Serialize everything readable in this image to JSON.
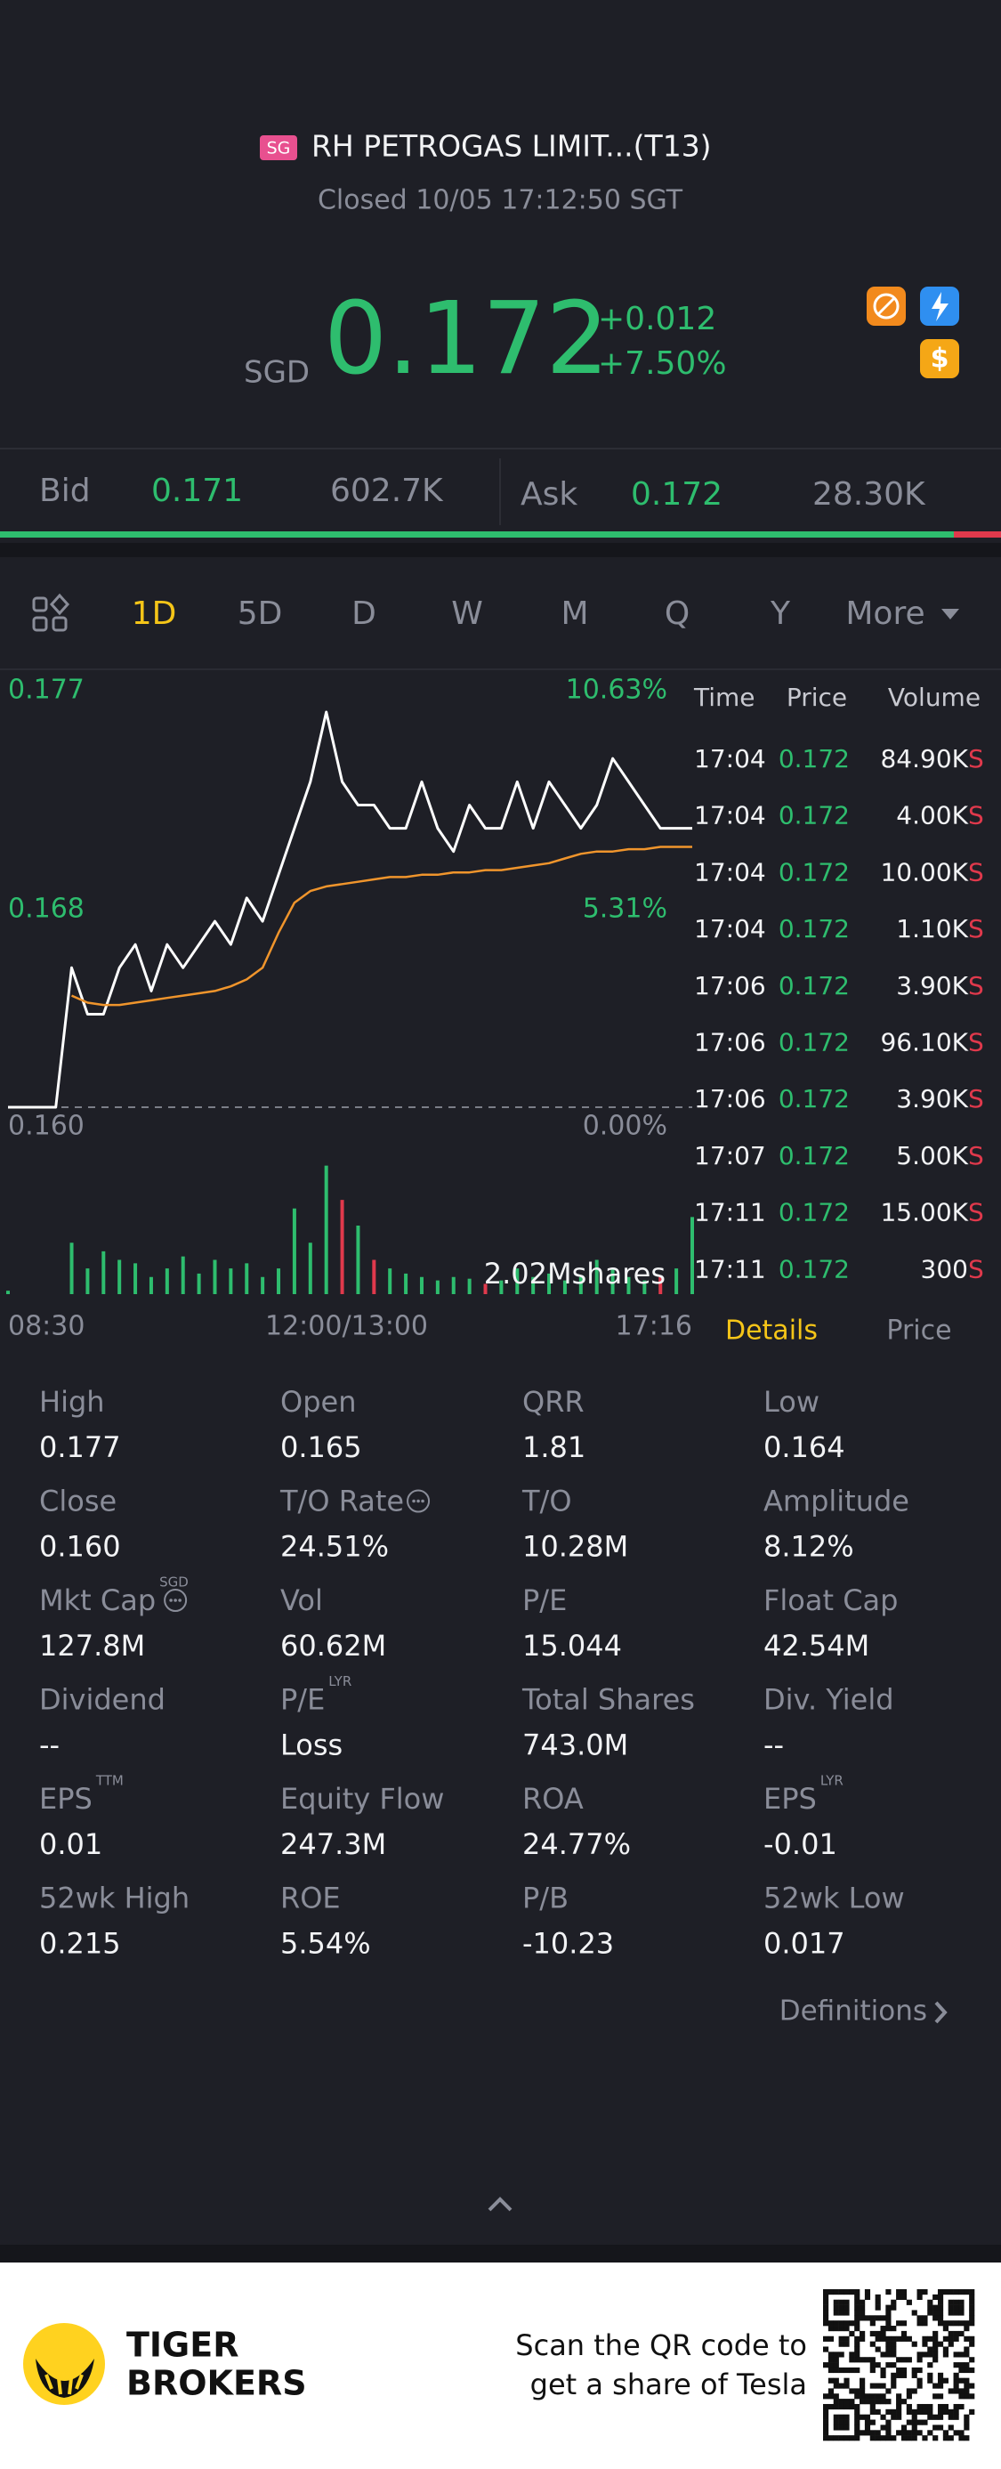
{
  "header": {
    "badge": "SG",
    "name": "RH PETROGAS LIMIT...(T13)",
    "status": "Closed 10/05 17:12:50 SGT",
    "currency": "SGD",
    "price": "0.172",
    "change": "+0.012",
    "change_pct": "+7.50%"
  },
  "quote": {
    "bid_label": "Bid",
    "bid": "0.171",
    "bid_size": "602.7K",
    "ask_label": "Ask",
    "ask": "0.172",
    "ask_size": "28.30K"
  },
  "tabs": [
    "1D",
    "5D",
    "D",
    "W",
    "M",
    "Q",
    "Y",
    "More"
  ],
  "chart_data": {
    "type": "line",
    "ylim": [
      0.16,
      0.177
    ],
    "yticks": [
      0.177,
      {
        "value": 0.1685,
        "label": "0.168"
      },
      {
        "value": 0.16,
        "label": "0.160"
      }
    ],
    "y2ticks": [
      {
        "value": 0.177,
        "label": "10.63%"
      },
      {
        "value": 0.1685,
        "label": "5.31%"
      },
      {
        "value": 0.16,
        "label": "0.00%"
      }
    ],
    "x_labels": [
      "08:30",
      "12:00/13:00",
      "17:16"
    ],
    "grid": false,
    "series": [
      {
        "color": "#ffffff",
        "values": [
          0.16,
          0.16,
          0.16,
          0.16,
          0.166,
          0.164,
          0.164,
          0.166,
          0.167,
          0.165,
          0.167,
          0.166,
          0.167,
          0.168,
          0.167,
          0.169,
          0.168,
          0.17,
          0.172,
          0.174,
          0.177,
          0.174,
          0.173,
          0.173,
          0.172,
          0.172,
          0.174,
          0.172,
          0.171,
          0.173,
          0.172,
          0.172,
          0.174,
          0.172,
          0.174,
          0.173,
          0.172,
          0.173,
          0.175,
          0.174,
          0.173,
          0.172,
          0.172,
          0.172
        ]
      },
      {
        "color": "#f0952c",
        "values": [
          null,
          null,
          null,
          null,
          0.1648,
          0.1645,
          0.1644,
          0.1644,
          0.1645,
          0.1646,
          0.1647,
          0.1648,
          0.1649,
          0.165,
          0.1652,
          0.1655,
          0.166,
          0.1675,
          0.1688,
          0.1693,
          0.1695,
          0.1696,
          0.1697,
          0.1698,
          0.1699,
          0.1699,
          0.17,
          0.17,
          0.1701,
          0.1701,
          0.1702,
          0.1702,
          0.1703,
          0.1704,
          0.1705,
          0.1707,
          0.1709,
          0.171,
          0.171,
          0.1711,
          0.1711,
          0.1712,
          0.1712,
          0.1712
        ]
      }
    ],
    "volume": {
      "label": "2.02Mshares",
      "ylim": [
        0,
        800000
      ],
      "up_color": "#2ebd6e",
      "down_color": "#e0394c",
      "values": [
        20000,
        0,
        0,
        0,
        300000,
        150000,
        250000,
        200000,
        180000,
        100000,
        150000,
        220000,
        120000,
        200000,
        150000,
        180000,
        100000,
        150000,
        500000,
        300000,
        750000,
        550000,
        400000,
        200000,
        150000,
        120000,
        100000,
        80000,
        100000,
        90000,
        60000,
        80000,
        150000,
        100000,
        120000,
        80000,
        100000,
        200000,
        150000,
        100000,
        80000,
        100000,
        150000,
        450000
      ],
      "up": [
        true,
        true,
        true,
        true,
        true,
        true,
        true,
        true,
        true,
        true,
        true,
        true,
        true,
        true,
        true,
        true,
        true,
        true,
        true,
        true,
        true,
        false,
        true,
        false,
        true,
        true,
        true,
        true,
        true,
        true,
        false,
        true,
        true,
        true,
        true,
        true,
        true,
        true,
        true,
        true,
        true,
        false,
        true,
        true
      ]
    }
  },
  "trades": {
    "headers": [
      "Time",
      "Price",
      "Volume"
    ],
    "rows": [
      [
        "17:04",
        "0.172",
        "84.90K",
        "S"
      ],
      [
        "17:04",
        "0.172",
        "4.00K",
        "S"
      ],
      [
        "17:04",
        "0.172",
        "10.00K",
        "S"
      ],
      [
        "17:04",
        "0.172",
        "1.10K",
        "S"
      ],
      [
        "17:06",
        "0.172",
        "3.90K",
        "S"
      ],
      [
        "17:06",
        "0.172",
        "96.10K",
        "S"
      ],
      [
        "17:06",
        "0.172",
        "3.90K",
        "S"
      ],
      [
        "17:07",
        "0.172",
        "5.00K",
        "S"
      ],
      [
        "17:11",
        "0.172",
        "15.00K",
        "S"
      ],
      [
        "17:11",
        "0.172",
        "300",
        "S"
      ]
    ]
  },
  "detail_tabs": [
    "Details",
    "Price"
  ],
  "stats": [
    [
      {
        "label": "High",
        "value": "0.177"
      },
      {
        "label": "Open",
        "value": "0.165"
      },
      {
        "label": "QRR",
        "value": "1.81"
      },
      {
        "label": "Low",
        "value": "0.164"
      }
    ],
    [
      {
        "label": "Close",
        "value": "0.160"
      },
      {
        "label": "T/O Rate",
        "value": "24.51%",
        "info": true
      },
      {
        "label": "T/O",
        "value": "10.28M"
      },
      {
        "label": "Amplitude",
        "value": "8.12%"
      }
    ],
    [
      {
        "label": "Mkt Cap",
        "sup": "SGD",
        "value": "127.8M",
        "info": true
      },
      {
        "label": "Vol",
        "value": "60.62M"
      },
      {
        "label": "P/E",
        "value": "15.044"
      },
      {
        "label": "Float Cap",
        "value": "42.54M"
      }
    ],
    [
      {
        "label": "Dividend",
        "value": "--"
      },
      {
        "label": "P/E",
        "sup": "LYR",
        "value": "Loss"
      },
      {
        "label": "Total Shares",
        "value": "743.0M"
      },
      {
        "label": "Div. Yield",
        "value": "--"
      }
    ],
    [
      {
        "label": "EPS",
        "sup": "TTM",
        "value": "0.01"
      },
      {
        "label": "Equity Flow",
        "value": "247.3M"
      },
      {
        "label": "ROA",
        "value": "24.77%"
      },
      {
        "label": "EPS",
        "sup": "LYR",
        "value": "-0.01"
      }
    ],
    [
      {
        "label": "52wk High",
        "value": "0.215"
      },
      {
        "label": "ROE",
        "value": "5.54%"
      },
      {
        "label": "P/B",
        "value": "-10.23"
      },
      {
        "label": "52wk Low",
        "value": "0.017"
      }
    ]
  ],
  "definitions": "Definitions",
  "footer": {
    "brand": [
      "TIGER",
      "BROKERS"
    ],
    "promo": [
      "Scan the QR code to",
      "get a share of Tesla"
    ]
  }
}
